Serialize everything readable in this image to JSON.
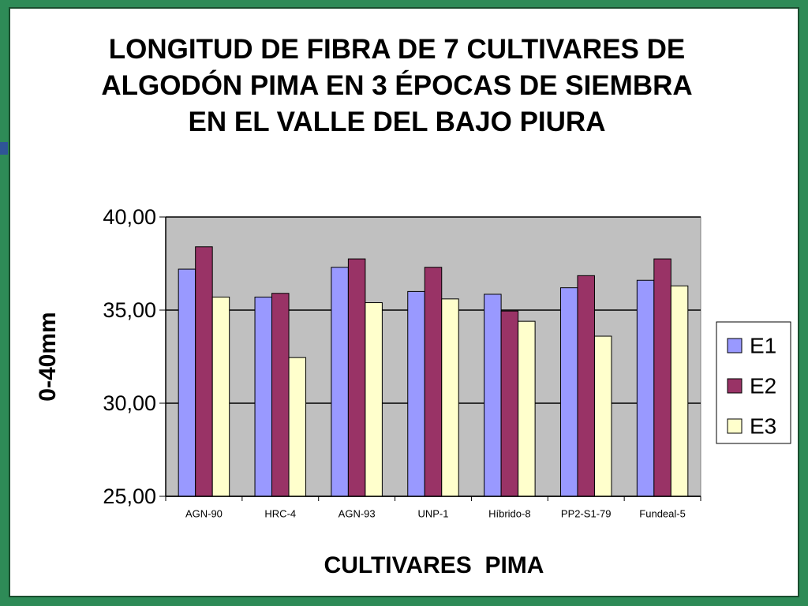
{
  "chart_data": {
    "type": "bar",
    "title": "LONGITUD DE FIBRA DE 7 CULTIVARES DE ALGODÓN PIMA EN 3 ÉPOCAS DE SIEMBRA EN EL VALLE DEL BAJO PIURA",
    "x_label": "CULTIVARES  PIMA",
    "y_label": "0-40mm",
    "categories": [
      "AGN-90",
      "HRC-4",
      "AGN-93",
      "UNP-1",
      "Híbrido-8",
      "PP2-S1-79",
      "Fundeal-5"
    ],
    "series": [
      {
        "name": "E1",
        "color": "#9999ff",
        "values": [
          37.2,
          35.7,
          37.3,
          36.0,
          35.85,
          36.2,
          36.6
        ]
      },
      {
        "name": "E2",
        "color": "#993366",
        "values": [
          38.4,
          35.9,
          37.75,
          37.3,
          34.95,
          36.85,
          37.75
        ]
      },
      {
        "name": "E3",
        "color": "#ffffcc",
        "values": [
          35.7,
          32.45,
          35.4,
          35.6,
          34.4,
          33.6,
          36.3
        ]
      }
    ],
    "ylim": [
      25,
      40
    ],
    "yticks": [
      {
        "value": 25,
        "label": "25,00"
      },
      {
        "value": 30,
        "label": "30,00"
      },
      {
        "value": 35,
        "label": "35,00"
      },
      {
        "value": 40,
        "label": "40,00"
      }
    ],
    "grid": true,
    "legend": "right",
    "plot_background": "#c0c0c0"
  }
}
